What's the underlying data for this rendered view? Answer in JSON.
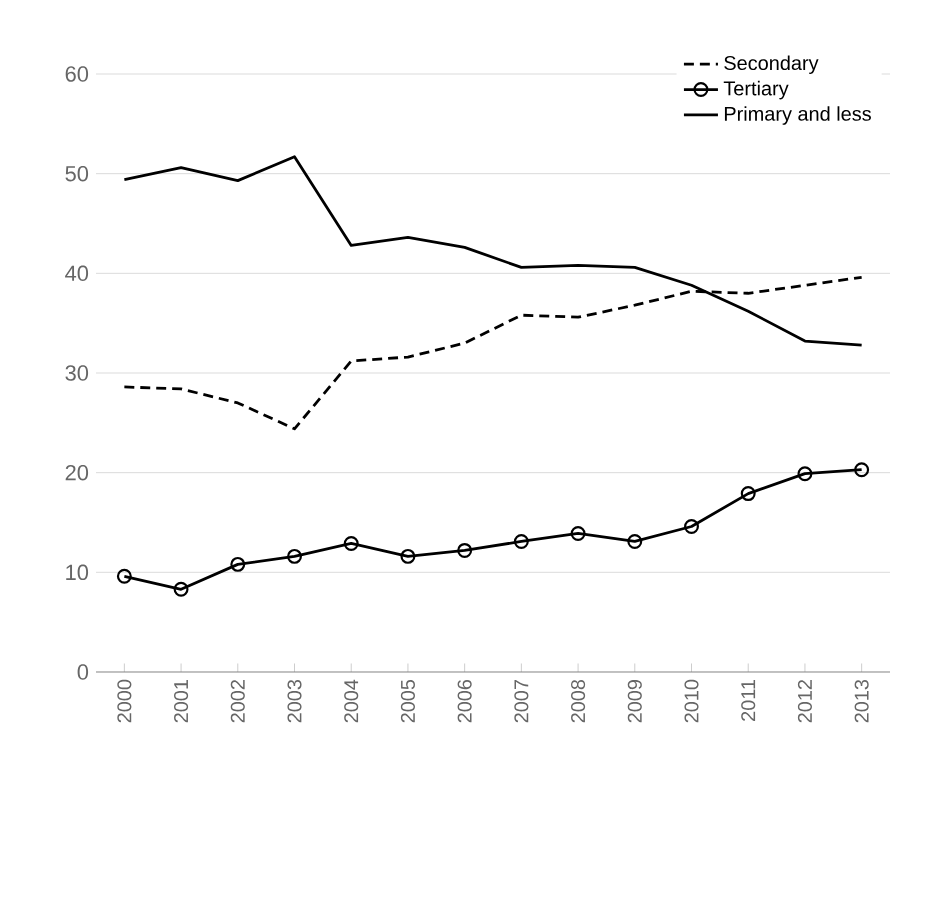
{
  "chart_data": {
    "type": "line",
    "categories": [
      "2000",
      "2001",
      "2002",
      "2003",
      "2004",
      "2005",
      "2006",
      "2007",
      "2008",
      "2009",
      "2010",
      "2011",
      "2012",
      "2013"
    ],
    "ylim": [
      0,
      60
    ],
    "yticks": [
      0,
      10,
      20,
      30,
      40,
      50,
      60
    ],
    "grid": "y",
    "legend": "top right",
    "series": [
      {
        "name": "Secondary",
        "color": "#000000",
        "line_style": "dashed",
        "marker": "none",
        "values": [
          28.6,
          28.4,
          27.0,
          24.4,
          31.2,
          31.6,
          33.0,
          35.8,
          35.6,
          36.8,
          38.2,
          38.0,
          38.8,
          39.6
        ]
      },
      {
        "name": "Tertiary",
        "color": "#000000",
        "line_style": "solid",
        "marker": "circle",
        "values": [
          9.6,
          8.3,
          10.8,
          11.6,
          12.9,
          11.6,
          12.2,
          13.1,
          13.9,
          13.1,
          14.6,
          17.9,
          19.9,
          20.3
        ]
      },
      {
        "name": "Primary and less",
        "color": "#000000",
        "line_style": "solid",
        "marker": "none",
        "values": [
          49.4,
          50.6,
          49.3,
          51.7,
          42.8,
          43.6,
          42.6,
          40.6,
          40.8,
          40.6,
          38.8,
          36.2,
          33.2,
          32.8
        ]
      }
    ]
  }
}
